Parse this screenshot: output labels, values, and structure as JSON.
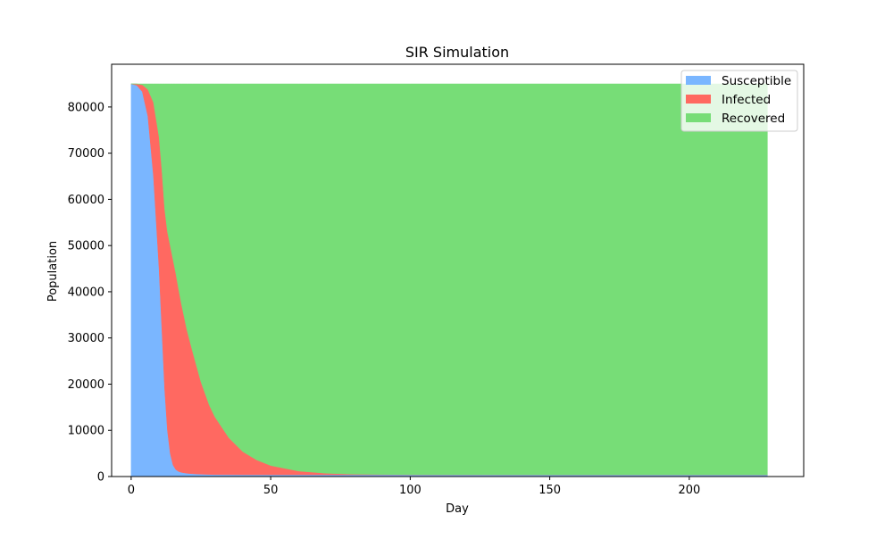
{
  "chart_data": {
    "type": "area",
    "stacked": true,
    "title": "SIR Simulation",
    "xlabel": "Day",
    "ylabel": "Population",
    "xlim": [
      -7,
      241
    ],
    "ylim": [
      0,
      89250
    ],
    "x_ticks": [
      0,
      50,
      100,
      150,
      200
    ],
    "y_ticks": [
      0,
      10000,
      20000,
      30000,
      40000,
      50000,
      60000,
      70000,
      80000
    ],
    "grid": false,
    "legend_position": "top-right",
    "x": [
      0,
      2,
      4,
      6,
      8,
      10,
      11,
      12,
      13,
      14,
      15,
      16,
      17,
      18,
      20,
      22,
      25,
      28,
      30,
      35,
      40,
      45,
      50,
      60,
      70,
      80,
      100,
      150,
      200,
      228
    ],
    "series": [
      {
        "name": "Susceptible",
        "color": "#7ab6ff",
        "values": [
          84990,
          84700,
          83300,
          78000,
          65000,
          45000,
          32000,
          19000,
          10000,
          5000,
          2500,
          1500,
          1100,
          900,
          700,
          600,
          500,
          450,
          420,
          400,
          390,
          385,
          380,
          380,
          380,
          380,
          380,
          380,
          380,
          380
        ]
      },
      {
        "name": "Infected",
        "color": "#ff6961",
        "values": [
          10,
          280,
          1500,
          5800,
          16000,
          28500,
          34500,
          39000,
          43000,
          45000,
          44500,
          42500,
          39500,
          36500,
          31000,
          26500,
          20000,
          15000,
          12500,
          8000,
          5000,
          3200,
          2000,
          800,
          320,
          130,
          25,
          0,
          0,
          0
        ]
      },
      {
        "name": "Recovered",
        "color": "#77dd77",
        "values": [
          0,
          20,
          200,
          1200,
          4000,
          11500,
          18500,
          27000,
          32000,
          35000,
          38000,
          41000,
          44400,
          47600,
          53300,
          57900,
          64500,
          69550,
          72080,
          76600,
          79610,
          81415,
          82620,
          83820,
          84300,
          84490,
          84595,
          84620,
          84620,
          84620
        ]
      }
    ]
  }
}
